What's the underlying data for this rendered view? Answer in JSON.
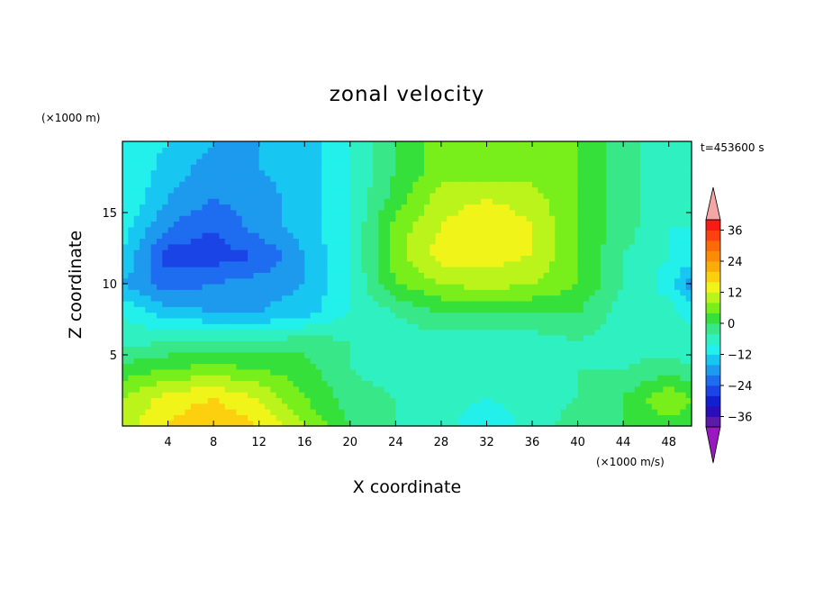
{
  "chart_data": {
    "type": "heatmap",
    "title": "zonal velocity",
    "xlabel": "X coordinate",
    "ylabel": "Z coordinate",
    "x_unit": "(×1000 m/s)",
    "y_unit": "(×1000 m)",
    "time_label": "t=453600 s",
    "xlim": [
      0,
      50
    ],
    "ylim": [
      0,
      20
    ],
    "x_ticks": [
      4,
      8,
      12,
      16,
      20,
      24,
      28,
      32,
      36,
      40,
      44,
      48
    ],
    "y_ticks": [
      5,
      10,
      15
    ],
    "grid": false,
    "colorbar": {
      "position": "right",
      "levels": [
        -40,
        -36,
        -32,
        -28,
        -24,
        -20,
        -16,
        -12,
        -8,
        -4,
        0,
        4,
        8,
        12,
        16,
        20,
        24,
        28,
        32,
        36,
        40
      ],
      "colors": [
        "#5b1aa8",
        "#2a0db8",
        "#1020d0",
        "#1a44e6",
        "#1e6cf0",
        "#1d9aee",
        "#18c6f2",
        "#23f0ea",
        "#2ff0c0",
        "#38e888",
        "#36e03a",
        "#78ee1a",
        "#baf41a",
        "#f0f418",
        "#fcd00e",
        "#fcac08",
        "#fc8c08",
        "#fc6a08",
        "#fc4010",
        "#f81a14"
      ],
      "under_color": "#9a18c0",
      "over_color": "#f4a6a6",
      "tick_labels": [
        "36",
        "24",
        "12",
        "0",
        "−12",
        "−24",
        "−36"
      ]
    },
    "grid_x": [
      0,
      4,
      8,
      12,
      16,
      20,
      24,
      28,
      32,
      36,
      40,
      44,
      48,
      50
    ],
    "grid_y": [
      0,
      2,
      4,
      6,
      8,
      10,
      12,
      14,
      16,
      18,
      20
    ],
    "values": [
      [
        10,
        16,
        20,
        16,
        8,
        0,
        -4,
        -6,
        -12,
        -6,
        -2,
        0,
        2,
        2
      ],
      [
        8,
        14,
        16,
        12,
        4,
        -2,
        -4,
        -6,
        -8,
        -6,
        -4,
        0,
        8,
        4
      ],
      [
        2,
        4,
        6,
        4,
        2,
        -4,
        -6,
        -6,
        -6,
        -6,
        -4,
        -4,
        -2,
        -4
      ],
      [
        -6,
        -4,
        -4,
        -4,
        -2,
        -4,
        -6,
        -6,
        -6,
        -6,
        -4,
        -6,
        -6,
        -6
      ],
      [
        -8,
        -14,
        -16,
        -16,
        -14,
        -8,
        -4,
        0,
        0,
        0,
        0,
        -6,
        -6,
        -10
      ],
      [
        -16,
        -22,
        -20,
        -18,
        -16,
        -8,
        4,
        8,
        10,
        8,
        4,
        -4,
        -10,
        -18
      ],
      [
        -12,
        -26,
        -26,
        -24,
        -16,
        -8,
        6,
        14,
        14,
        12,
        4,
        -4,
        -8,
        -10
      ],
      [
        -10,
        -20,
        -24,
        -18,
        -14,
        -8,
        6,
        12,
        16,
        12,
        4,
        -2,
        -8,
        -8
      ],
      [
        -8,
        -16,
        -20,
        -18,
        -14,
        -8,
        2,
        10,
        12,
        10,
        4,
        -2,
        -8,
        -8
      ],
      [
        -8,
        -14,
        -18,
        -16,
        -14,
        -8,
        0,
        6,
        6,
        6,
        4,
        -2,
        -8,
        -8
      ],
      [
        -8,
        -12,
        -16,
        -16,
        -14,
        -8,
        0,
        6,
        6,
        6,
        4,
        -2,
        -8,
        -8
      ]
    ]
  }
}
